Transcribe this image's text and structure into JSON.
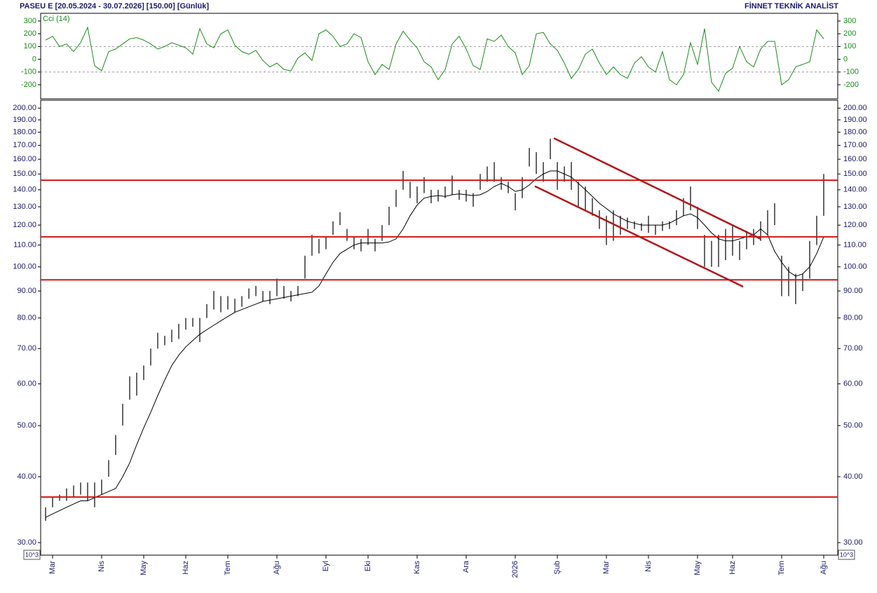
{
  "header": {
    "title": "PASEU E  [20.05.2024 - 30.07.2026]  [150.00]  [Günlük]",
    "brand": "FİNNET TEKNİK ANALİST",
    "scale_note": "10^3"
  },
  "chart_data": [
    {
      "type": "line",
      "name": "Cci (14)",
      "color": "#1a8c1a",
      "values": [
        150,
        180,
        100,
        120,
        60,
        130,
        250,
        -50,
        -90,
        60,
        80,
        120,
        160,
        170,
        150,
        120,
        80,
        100,
        130,
        110,
        90,
        40,
        240,
        120,
        90,
        200,
        230,
        110,
        60,
        40,
        70,
        -10,
        -60,
        -30,
        -80,
        -90,
        10,
        50,
        -10,
        200,
        230,
        180,
        100,
        120,
        200,
        170,
        -20,
        -120,
        -40,
        -80,
        120,
        220,
        150,
        90,
        -20,
        -60,
        -160,
        -80,
        120,
        180,
        80,
        -50,
        -80,
        160,
        140,
        190,
        100,
        50,
        -120,
        -50,
        200,
        210,
        120,
        70,
        -30,
        -150,
        -80,
        40,
        80,
        -30,
        -120,
        -60,
        -120,
        -150,
        -30,
        20,
        -60,
        -100,
        60,
        -160,
        -200,
        -120,
        130,
        -40,
        240,
        -180,
        -250,
        -110,
        -70,
        100,
        -20,
        -60,
        80,
        140,
        140,
        -200,
        -160,
        -60,
        -40,
        -20,
        230,
        160
      ],
      "ylim": [
        -310,
        360
      ],
      "yticks": [
        300,
        200,
        100,
        0,
        -100,
        -200
      ],
      "reference_lines": [
        100,
        -100
      ]
    },
    {
      "type": "ohlc",
      "color": "#000000",
      "log_scale": true,
      "categories": [
        null,
        "Mar",
        null,
        null,
        null,
        null,
        null,
        null,
        "Nis",
        null,
        null,
        null,
        null,
        null,
        "May",
        null,
        null,
        null,
        null,
        null,
        "Haz",
        null,
        null,
        null,
        null,
        null,
        "Tem",
        null,
        null,
        null,
        null,
        null,
        null,
        "Ağu",
        null,
        null,
        null,
        null,
        null,
        null,
        "Eyl",
        null,
        null,
        null,
        null,
        null,
        "Eki",
        null,
        null,
        null,
        null,
        null,
        null,
        "Kas",
        null,
        null,
        null,
        null,
        null,
        null,
        "Ara",
        null,
        null,
        null,
        null,
        null,
        null,
        "2026",
        null,
        null,
        null,
        null,
        null,
        "Şub",
        null,
        null,
        null,
        null,
        null,
        null,
        "Mar",
        null,
        null,
        null,
        null,
        null,
        "Nis",
        null,
        null,
        null,
        null,
        null,
        null,
        "May",
        null,
        null,
        null,
        null,
        "Haz",
        null,
        null,
        null,
        null,
        null,
        null,
        "Tem",
        null,
        null,
        null,
        null,
        null,
        "Ağu"
      ],
      "high": [
        35,
        36.5,
        37,
        38,
        38.5,
        39,
        39,
        39,
        39.5,
        43,
        48,
        55,
        62,
        63,
        65,
        70,
        75,
        74,
        76,
        78,
        80,
        80,
        80,
        85,
        90,
        88,
        88,
        87,
        88,
        91,
        92,
        90,
        90,
        95,
        92,
        90,
        92,
        105,
        115,
        113,
        114,
        122,
        127,
        118,
        114,
        113,
        118,
        113,
        120,
        130,
        140,
        152,
        145,
        142,
        148,
        140,
        140,
        142,
        149,
        140,
        140,
        138,
        150,
        155,
        158,
        148,
        145,
        138,
        148,
        168,
        165,
        158,
        175,
        158,
        155,
        158,
        145,
        142,
        135,
        128,
        125,
        128,
        125,
        124,
        122,
        121,
        125,
        120,
        122,
        122,
        128,
        135,
        142,
        130,
        115,
        112,
        115,
        118,
        120,
        112,
        117,
        118,
        122,
        128,
        132,
        105,
        100,
        97,
        97,
        112,
        125,
        150
      ],
      "low": [
        33,
        35,
        36,
        36,
        36.5,
        37,
        36,
        35,
        37,
        40,
        44,
        50,
        56,
        57,
        61,
        65,
        70,
        71,
        72,
        73,
        76,
        77,
        72,
        80,
        83,
        82,
        83,
        82,
        84,
        87,
        88,
        86,
        85,
        88,
        87,
        86,
        88,
        95,
        105,
        106,
        108,
        115,
        120,
        112,
        108,
        107,
        110,
        107,
        112,
        120,
        130,
        140,
        135,
        132,
        138,
        132,
        133,
        135,
        137,
        134,
        133,
        130,
        140,
        145,
        145,
        140,
        138,
        128,
        135,
        155,
        150,
        145,
        160,
        140,
        145,
        140,
        130,
        128,
        125,
        118,
        110,
        112,
        115,
        118,
        118,
        117,
        116,
        115,
        117,
        118,
        120,
        125,
        128,
        118,
        100,
        100,
        100,
        103,
        105,
        103,
        108,
        110,
        112,
        115,
        120,
        88,
        88,
        85,
        90,
        95,
        110,
        125
      ],
      "ma": {
        "color": "#000000",
        "values": [
          33.5,
          34,
          34.5,
          35,
          35.5,
          36,
          36,
          36.5,
          37,
          37.5,
          38,
          40,
          42.5,
          46,
          49.5,
          53,
          57,
          61,
          65,
          68,
          70.5,
          72.5,
          74.5,
          76,
          77.5,
          79,
          80.5,
          82,
          83,
          84,
          85,
          86,
          86.5,
          87,
          87.5,
          88,
          88.5,
          89,
          89.5,
          92,
          97,
          102,
          106,
          108,
          110,
          111,
          111,
          111,
          111,
          111.5,
          113,
          118,
          125,
          131,
          135,
          136,
          136.5,
          136,
          137,
          137.5,
          137,
          136.5,
          137,
          139,
          142,
          144,
          142,
          139,
          140,
          143,
          147,
          150,
          152,
          152,
          150,
          148,
          144,
          140,
          136,
          132,
          129,
          126,
          124,
          122,
          121,
          120,
          120,
          120,
          120,
          121,
          123,
          125,
          126,
          124,
          120,
          116,
          113,
          112,
          112,
          113,
          114,
          115,
          118,
          115,
          107,
          102,
          98,
          96,
          97,
          100,
          106,
          114
        ]
      },
      "ylim": [
        28.4,
        207
      ],
      "yticks": [
        {
          "value": 200,
          "label": "200.00"
        },
        {
          "value": 190,
          "label": "190.00"
        },
        {
          "value": 180,
          "label": "180.00"
        },
        {
          "value": 170,
          "label": "170.00"
        },
        {
          "value": 160,
          "label": "160.00"
        },
        {
          "value": 150,
          "label": "150.00"
        },
        {
          "value": 140,
          "label": "140.00"
        },
        {
          "value": 130,
          "label": "130.00"
        },
        {
          "value": 120,
          "label": "120.00"
        },
        {
          "value": 110,
          "label": "110.00"
        },
        {
          "value": 100,
          "label": "100.00"
        },
        {
          "value": 90,
          "label": "90.00"
        },
        {
          "value": 80,
          "label": "80.00"
        },
        {
          "value": 70,
          "label": "70.00"
        },
        {
          "value": 60,
          "label": "60.00"
        },
        {
          "value": 50,
          "label": "50.00"
        },
        {
          "value": 40,
          "label": "40.00"
        },
        {
          "value": 30,
          "label": "30.00"
        }
      ],
      "levels": [
        146,
        114,
        94.5,
        36.6
      ],
      "level_color": "#d41414",
      "trendlines": [
        {
          "start": [
            72.5,
            175.4
          ],
          "end": [
            102,
            113
          ]
        },
        {
          "start": [
            69.8,
            142.2
          ],
          "end": [
            99.5,
            91.7
          ]
        }
      ],
      "trendline_color": "#b01818"
    }
  ]
}
